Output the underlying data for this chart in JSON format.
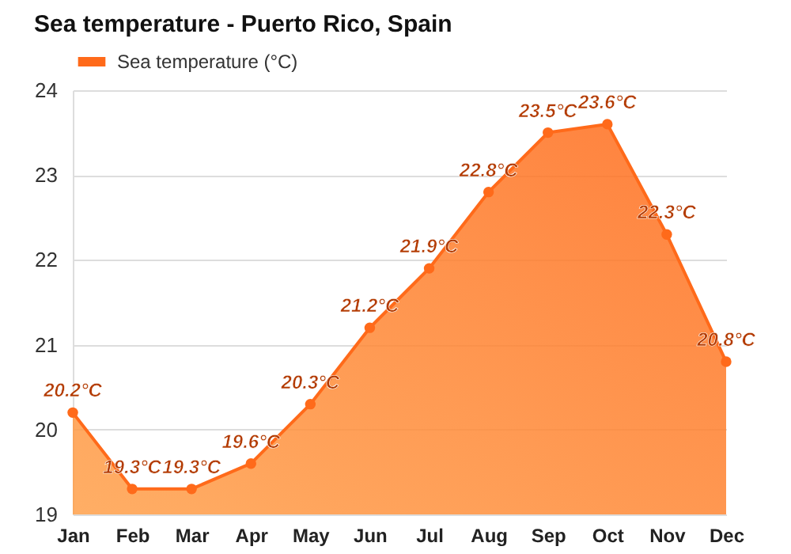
{
  "chart_data": {
    "type": "area",
    "title": "Sea temperature - Puerto Rico, Spain",
    "categories": [
      "Jan",
      "Feb",
      "Mar",
      "Apr",
      "May",
      "Jun",
      "Jul",
      "Aug",
      "Sep",
      "Oct",
      "Nov",
      "Dec"
    ],
    "series": [
      {
        "name": "Sea temperature (°C)",
        "color": "#ff6a1a",
        "values": [
          20.2,
          19.3,
          19.3,
          19.6,
          20.3,
          21.2,
          21.9,
          22.8,
          23.5,
          23.6,
          22.3,
          20.8
        ],
        "value_labels": [
          "20.2°C",
          "19.3°C",
          "19.3°C",
          "19.6°C",
          "20.3°C",
          "21.2°C",
          "21.9°C",
          "22.8°C",
          "23.5°C",
          "23.6°C",
          "22.3°C",
          "20.8°C"
        ]
      }
    ],
    "ylim": [
      19,
      24
    ],
    "yticks": [
      19,
      20,
      21,
      22,
      23,
      24
    ],
    "grid": true,
    "legend": "top left",
    "marker": "circle",
    "line_style": "solid"
  }
}
